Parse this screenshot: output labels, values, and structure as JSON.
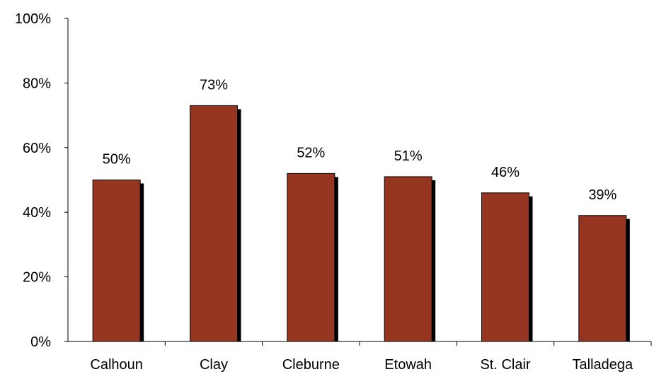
{
  "chart_data": {
    "type": "bar",
    "title": "",
    "xlabel": "",
    "ylabel": "",
    "categories": [
      "Calhoun",
      "Clay",
      "Cleburne",
      "Etowah",
      "St. Clair",
      "Talladega"
    ],
    "values": [
      50,
      73,
      52,
      51,
      46,
      39
    ],
    "data_labels": [
      "50%",
      "73%",
      "52%",
      "51%",
      "46%",
      "39%"
    ],
    "ylim": [
      0,
      100
    ],
    "yticks": [
      0,
      20,
      40,
      60,
      80,
      100
    ],
    "ytick_labels": [
      "0%",
      "20%",
      "40%",
      "60%",
      "80%",
      "100%"
    ],
    "grid": false,
    "legend": "none",
    "colors": {
      "bar": "#963520",
      "bar_shadow": "#000000",
      "axis": "#000000"
    }
  }
}
